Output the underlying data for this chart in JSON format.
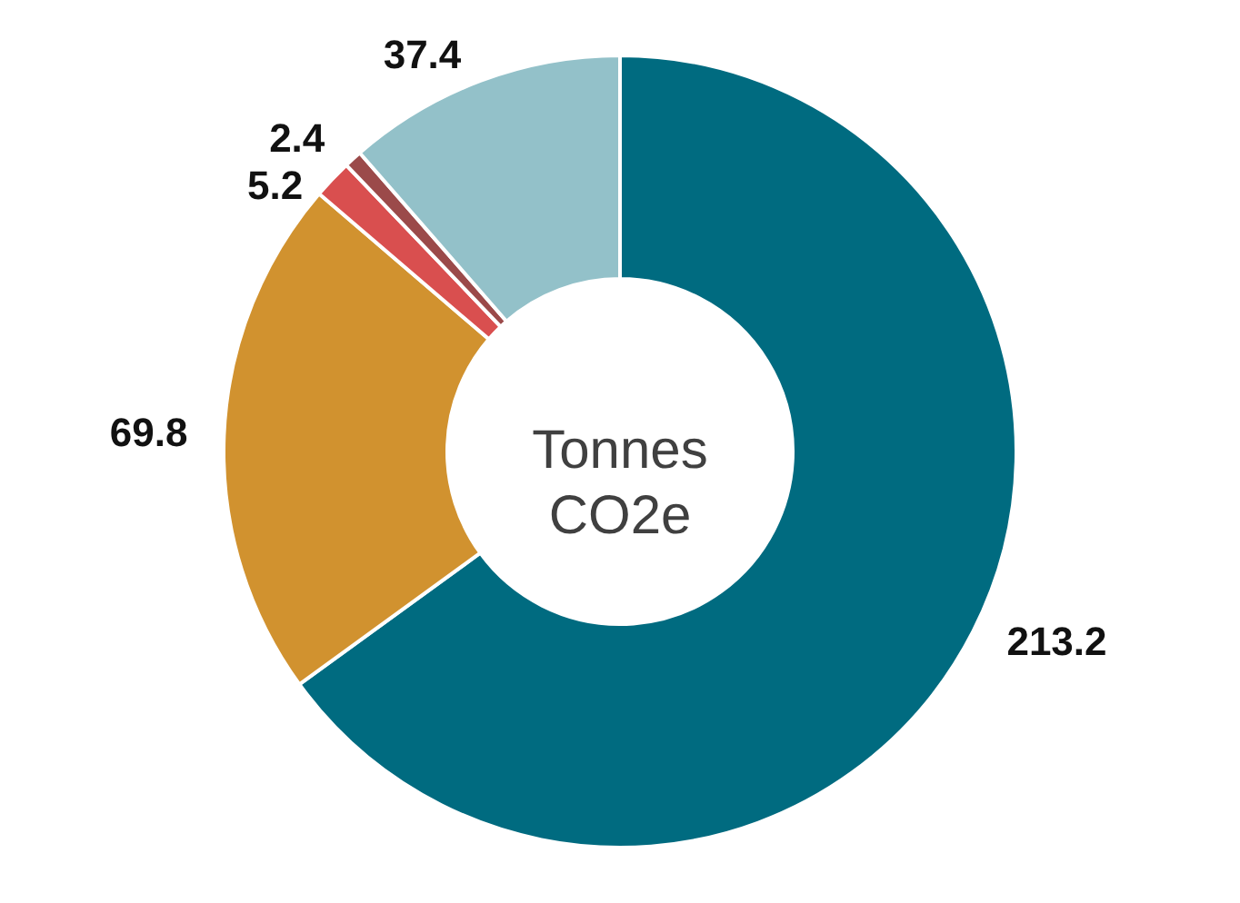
{
  "chart_data": {
    "type": "donut",
    "title": "Tonnes CO2e",
    "categories": [
      null,
      null,
      null,
      null,
      null
    ],
    "values": [
      213.2,
      69.8,
      5.2,
      2.4,
      37.4
    ],
    "colors": [
      "#006b80",
      "#d1922f",
      "#d94f4f",
      "#9b4a4a",
      "#93c1c9"
    ],
    "data_labels": true
  }
}
